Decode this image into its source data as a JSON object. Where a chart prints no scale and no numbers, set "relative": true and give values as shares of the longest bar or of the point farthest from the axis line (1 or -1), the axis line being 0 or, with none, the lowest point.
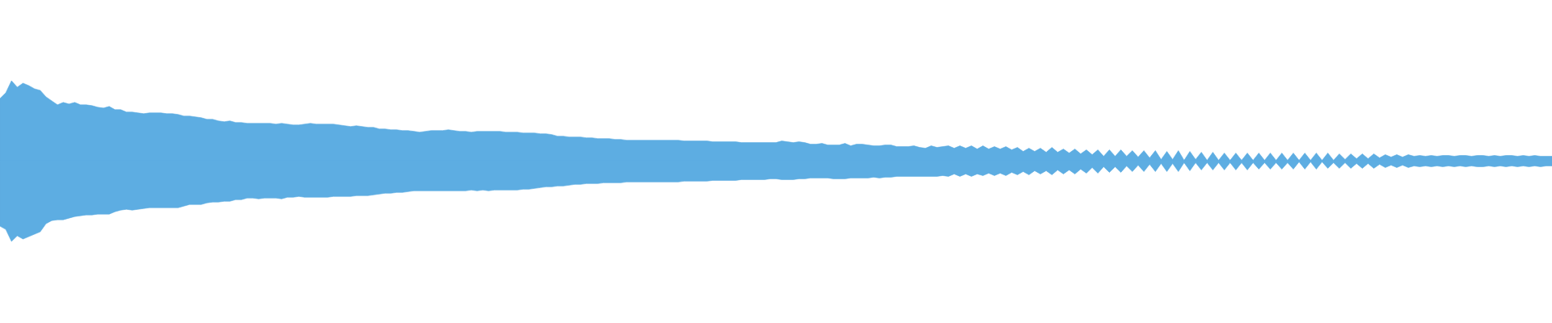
{
  "chart_data": {
    "type": "area",
    "relative": true,
    "categories": [
      null,
      null,
      null,
      null,
      null,
      null,
      null,
      null,
      null,
      null,
      null,
      null,
      null,
      null,
      null,
      null,
      null,
      null,
      null,
      null,
      null,
      null,
      null,
      null,
      null,
      null,
      null,
      null,
      null,
      null,
      null,
      null,
      null,
      null,
      null,
      null,
      null,
      null,
      null,
      null,
      null,
      null,
      null,
      null,
      null,
      null,
      null,
      null,
      null,
      null,
      null,
      null,
      null,
      null,
      null,
      null,
      null,
      null,
      null,
      null,
      null,
      null,
      null,
      null,
      null,
      null,
      null,
      null,
      null,
      null,
      null,
      null,
      null,
      null,
      null,
      null,
      null,
      null,
      null,
      null,
      null,
      null,
      null,
      null,
      null,
      null,
      null,
      null,
      null,
      null,
      null,
      null,
      null,
      null,
      null,
      null,
      null,
      null,
      null,
      null,
      null,
      null,
      null,
      null,
      null,
      null,
      null,
      null,
      null,
      null,
      null,
      null,
      null,
      null,
      null,
      null,
      null,
      null,
      null,
      null,
      null,
      null,
      null,
      null,
      null,
      null,
      null,
      null,
      null,
      null,
      null,
      null,
      null,
      null,
      null,
      null,
      null,
      null,
      null,
      null,
      null,
      null,
      null,
      null,
      null,
      null,
      null,
      null,
      null,
      null,
      null,
      null,
      null,
      null,
      null,
      null,
      null,
      null,
      null,
      null,
      null,
      null,
      null,
      null,
      null,
      null,
      null,
      null,
      null,
      null,
      null,
      null,
      null,
      null,
      null,
      null,
      null,
      null,
      null,
      null,
      null,
      null,
      null,
      null,
      null,
      null,
      null,
      null,
      null,
      null,
      null,
      null,
      null,
      null,
      null,
      null,
      null,
      null,
      null,
      null,
      null,
      null,
      null,
      null,
      null,
      null,
      null,
      null,
      null,
      null,
      null,
      null,
      null,
      null,
      null,
      null,
      null,
      null,
      null,
      null,
      null,
      null,
      null,
      null,
      null,
      null,
      null,
      null,
      null,
      null,
      null,
      null,
      null,
      null,
      null,
      null,
      null,
      null,
      null,
      null,
      null,
      null,
      null,
      null,
      null,
      null,
      null,
      null,
      null,
      null,
      null,
      null,
      null,
      null,
      null,
      null,
      null,
      null,
      null,
      null,
      null,
      null,
      null,
      null,
      null,
      null,
      null,
      null,
      null,
      null,
      null
    ],
    "ref_lines": [
      {
        "axis": "y",
        "value": 0,
        "color": "#5dade2"
      }
    ],
    "series": [
      {
        "color": "#5dade2",
        "values": [
          0.78,
          0.85,
          1.0,
          0.92,
          0.97,
          0.94,
          0.9,
          0.88,
          0.8,
          0.75,
          0.7,
          0.73,
          0.71,
          0.73,
          0.7,
          0.7,
          0.69,
          0.67,
          0.66,
          0.68,
          0.64,
          0.64,
          0.61,
          0.61,
          0.6,
          0.59,
          0.6,
          0.6,
          0.6,
          0.59,
          0.59,
          0.58,
          0.56,
          0.56,
          0.55,
          0.54,
          0.52,
          0.52,
          0.5,
          0.49,
          0.5,
          0.48,
          0.48,
          0.47,
          0.47,
          0.47,
          0.47,
          0.47,
          0.46,
          0.47,
          0.46,
          0.45,
          0.45,
          0.46,
          0.47,
          0.46,
          0.46,
          0.46,
          0.46,
          0.45,
          0.44,
          0.43,
          0.44,
          0.43,
          0.42,
          0.42,
          0.4,
          0.4,
          0.39,
          0.39,
          0.38,
          0.38,
          0.37,
          0.36,
          0.37,
          0.38,
          0.38,
          0.38,
          0.39,
          0.38,
          0.37,
          0.37,
          0.36,
          0.37,
          0.37,
          0.37,
          0.37,
          0.37,
          0.36,
          0.36,
          0.36,
          0.35,
          0.35,
          0.35,
          0.34,
          0.34,
          0.33,
          0.31,
          0.31,
          0.3,
          0.3,
          0.3,
          0.29,
          0.29,
          0.28,
          0.28,
          0.28,
          0.27,
          0.27,
          0.26,
          0.26,
          0.26,
          0.26,
          0.26,
          0.26,
          0.26,
          0.26,
          0.26,
          0.26,
          0.25,
          0.25,
          0.25,
          0.25,
          0.25,
          0.24,
          0.24,
          0.24,
          0.24,
          0.24,
          0.23,
          0.23,
          0.23,
          0.23,
          0.23,
          0.23,
          0.23,
          0.25,
          0.24,
          0.23,
          0.24,
          0.23,
          0.21,
          0.21,
          0.22,
          0.2,
          0.2,
          0.2,
          0.22,
          0.19,
          0.21,
          0.21,
          0.2,
          0.19,
          0.19,
          0.2,
          0.2,
          0.18,
          0.18,
          0.18,
          0.19,
          0.17,
          0.16,
          0.19,
          0.17,
          0.18,
          0.19,
          0.16,
          0.19,
          0.16,
          0.19,
          0.15,
          0.19,
          0.15,
          0.18,
          0.15,
          0.18,
          0.14,
          0.17,
          0.12,
          0.16,
          0.12,
          0.16,
          0.11,
          0.17,
          0.11,
          0.15,
          0.1,
          0.15,
          0.09,
          0.14,
          0.08,
          0.14,
          0.06,
          0.14,
          0.06,
          0.14,
          0.06,
          0.13,
          0.05,
          0.13,
          0.04,
          0.13,
          0.02,
          0.12,
          0.02,
          0.13,
          0.01,
          0.12,
          0.02,
          0.11,
          0.01,
          0.11,
          0.01,
          0.1,
          0.01,
          0.1,
          0.01,
          0.1,
          0.01,
          0.1,
          0.01,
          0.1,
          0.01,
          0.1,
          0.01,
          0.1,
          0.01,
          0.1,
          0.01,
          0.1,
          0.01,
          0.1,
          0.01,
          0.09,
          0.02,
          0.09,
          0.03,
          0.09,
          0.03,
          0.09,
          0.04,
          0.08,
          0.05,
          0.08,
          0.05,
          0.08,
          0.06,
          0.07,
          0.06,
          0.07,
          0.06,
          0.07,
          0.07,
          0.06,
          0.07,
          0.07,
          0.06,
          0.07,
          0.07,
          0.06,
          0.07,
          0.06,
          0.07,
          0.07,
          0.06,
          0.07,
          0.06,
          0.07,
          0.06,
          0.06,
          0.06
        ]
      },
      {
        "color": "#5dade2",
        "values": [
          -0.81,
          -0.85,
          -1.0,
          -0.93,
          -0.97,
          -0.94,
          -0.91,
          -0.88,
          -0.78,
          -0.74,
          -0.73,
          -0.73,
          -0.71,
          -0.69,
          -0.68,
          -0.67,
          -0.67,
          -0.66,
          -0.66,
          -0.66,
          -0.63,
          -0.61,
          -0.6,
          -0.61,
          -0.6,
          -0.59,
          -0.58,
          -0.58,
          -0.58,
          -0.58,
          -0.58,
          -0.58,
          -0.56,
          -0.54,
          -0.54,
          -0.54,
          -0.52,
          -0.51,
          -0.51,
          -0.5,
          -0.5,
          -0.48,
          -0.48,
          -0.46,
          -0.46,
          -0.47,
          -0.46,
          -0.46,
          -0.46,
          -0.47,
          -0.45,
          -0.45,
          -0.44,
          -0.45,
          -0.45,
          -0.45,
          -0.45,
          -0.45,
          -0.44,
          -0.44,
          -0.44,
          -0.44,
          -0.43,
          -0.43,
          -0.43,
          -0.42,
          -0.41,
          -0.4,
          -0.4,
          -0.39,
          -0.39,
          -0.38,
          -0.37,
          -0.37,
          -0.37,
          -0.37,
          -0.37,
          -0.37,
          -0.37,
          -0.37,
          -0.37,
          -0.37,
          -0.36,
          -0.37,
          -0.36,
          -0.37,
          -0.36,
          -0.36,
          -0.36,
          -0.36,
          -0.36,
          -0.35,
          -0.35,
          -0.34,
          -0.33,
          -0.32,
          -0.32,
          -0.31,
          -0.31,
          -0.3,
          -0.29,
          -0.29,
          -0.28,
          -0.28,
          -0.28,
          -0.27,
          -0.27,
          -0.27,
          -0.27,
          -0.26,
          -0.26,
          -0.26,
          -0.26,
          -0.26,
          -0.26,
          -0.26,
          -0.26,
          -0.26,
          -0.26,
          -0.25,
          -0.25,
          -0.25,
          -0.25,
          -0.25,
          -0.24,
          -0.24,
          -0.24,
          -0.24,
          -0.24,
          -0.23,
          -0.23,
          -0.23,
          -0.23,
          -0.23,
          -0.22,
          -0.22,
          -0.23,
          -0.23,
          -0.23,
          -0.22,
          -0.22,
          -0.21,
          -0.21,
          -0.21,
          -0.21,
          -0.22,
          -0.22,
          -0.22,
          -0.21,
          -0.21,
          -0.21,
          -0.21,
          -0.2,
          -0.21,
          -0.2,
          -0.2,
          -0.19,
          -0.19,
          -0.19,
          -0.19,
          -0.19,
          -0.19,
          -0.19,
          -0.19,
          -0.18,
          -0.19,
          -0.16,
          -0.19,
          -0.16,
          -0.19,
          -0.16,
          -0.18,
          -0.15,
          -0.18,
          -0.15,
          -0.18,
          -0.14,
          -0.17,
          -0.13,
          -0.17,
          -0.12,
          -0.16,
          -0.12,
          -0.17,
          -0.11,
          -0.16,
          -0.11,
          -0.16,
          -0.1,
          -0.15,
          -0.08,
          -0.15,
          -0.07,
          -0.14,
          -0.07,
          -0.14,
          -0.06,
          -0.13,
          -0.05,
          -0.13,
          -0.04,
          -0.13,
          -0.03,
          -0.13,
          -0.03,
          -0.13,
          -0.02,
          -0.12,
          -0.02,
          -0.11,
          -0.02,
          -0.11,
          -0.02,
          -0.11,
          -0.02,
          -0.11,
          -0.02,
          -0.11,
          -0.02,
          -0.1,
          -0.02,
          -0.1,
          -0.02,
          -0.1,
          -0.02,
          -0.1,
          -0.01,
          -0.1,
          -0.01,
          -0.1,
          -0.01,
          -0.09,
          -0.02,
          -0.09,
          -0.02,
          -0.09,
          -0.03,
          -0.09,
          -0.03,
          -0.09,
          -0.04,
          -0.08,
          -0.05,
          -0.08,
          -0.05,
          -0.08,
          -0.06,
          -0.07,
          -0.06,
          -0.07,
          -0.06,
          -0.07,
          -0.06,
          -0.07,
          -0.06,
          -0.07,
          -0.06,
          -0.07,
          -0.07,
          -0.06,
          -0.07,
          -0.06,
          -0.07,
          -0.06,
          -0.07,
          -0.06,
          -0.07,
          -0.06,
          -0.07,
          -0.06,
          -0.06
        ]
      }
    ]
  }
}
